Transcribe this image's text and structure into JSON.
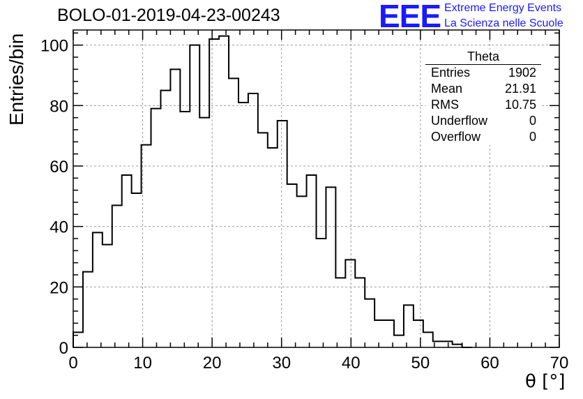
{
  "title": "BOLO-01-2019-04-23-00243",
  "logo": {
    "letters": "EEE",
    "line1": "Extreme Energy Events",
    "line2": "La Scienza nelle Scuole",
    "color": "#1a1aff"
  },
  "stats_box": {
    "title": "Theta",
    "rows": [
      {
        "label": "Entries",
        "value": "1902"
      },
      {
        "label": "Mean",
        "value": "21.91"
      },
      {
        "label": "RMS",
        "value": "10.75"
      },
      {
        "label": "Underflow",
        "value": "0"
      },
      {
        "label": "Overflow",
        "value": "0"
      }
    ]
  },
  "chart_data": {
    "type": "bar",
    "style": "step-histogram",
    "xlabel": "θ [°]",
    "ylabel": "Entries/bin",
    "xlim": [
      0,
      70
    ],
    "ylim": [
      0,
      105
    ],
    "x_ticks": [
      "0",
      "10",
      "20",
      "30",
      "40",
      "50",
      "60",
      "70"
    ],
    "y_ticks": [
      "0",
      "20",
      "40",
      "60",
      "80",
      "100"
    ],
    "grid": true,
    "bin_width": 1.4,
    "bin_edges_start": 0,
    "values": [
      5,
      25,
      38,
      34,
      47,
      57,
      51,
      67,
      79,
      85,
      92,
      78,
      100,
      76,
      102,
      103,
      89,
      81,
      84,
      71,
      66,
      75,
      54,
      50,
      57,
      36,
      53,
      23,
      29,
      23,
      16,
      9,
      9,
      4,
      14,
      9,
      5,
      2,
      2,
      1,
      0
    ]
  }
}
